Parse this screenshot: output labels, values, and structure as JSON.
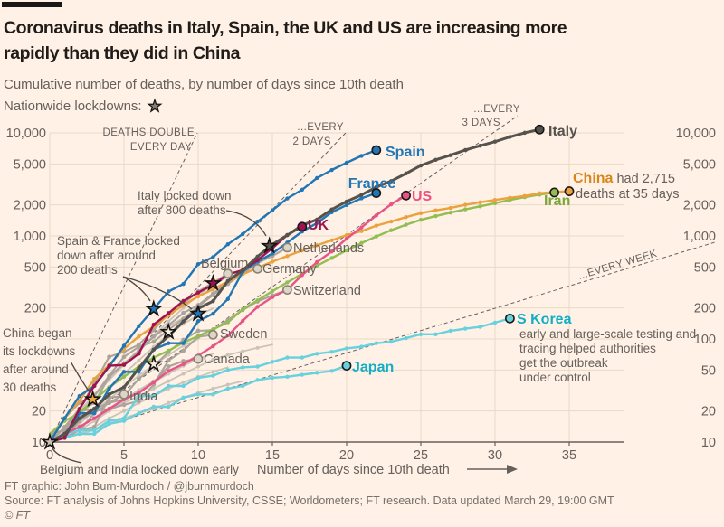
{
  "page": {
    "background": "#FFF1E5"
  },
  "header": {
    "brand_bar_color": "#1A1817",
    "title_line1": "Coronavirus deaths in Italy, Spain, the UK and US are increasing more",
    "title_line2": "rapidly than they did in China",
    "subtitle": "Cumulative number of deaths, by number of days since 10th death",
    "lockdown_legend_label": "Nationwide lockdowns:",
    "lockdown_icon": "star-icon"
  },
  "footer": {
    "credit": "FT graphic: John Burn-Murdoch / @jburnmurdoch",
    "source": "Source: FT analysis of Johns Hopkins University, CSSE; Worldometers; FT research. Data updated March 29, 19:00 GMT",
    "copyright": "© FT"
  },
  "chart_data": {
    "type": "line",
    "x_axis": {
      "label": "Number of days since 10th death",
      "ticks": [
        0,
        5,
        10,
        15,
        20,
        25,
        30,
        35
      ],
      "range": [
        0,
        38.7
      ]
    },
    "y_axis": {
      "scale": "log",
      "range": [
        10,
        10000
      ],
      "ticks_left": [
        "10,000",
        "5,000",
        "2,000",
        "1,000",
        "500",
        "200",
        "20",
        "10"
      ],
      "ticks_left_values": [
        10000,
        5000,
        2000,
        1000,
        500,
        200,
        20,
        10
      ],
      "ticks_right": [
        "10,000",
        "5,000",
        "2,000",
        "1,000",
        "500",
        "200",
        "100",
        "50",
        "20",
        "10"
      ],
      "ticks_right_values": [
        10000,
        5000,
        2000,
        1000,
        500,
        200,
        100,
        50,
        20,
        10
      ],
      "gridline_values": [
        20,
        50,
        100,
        200,
        500,
        1000,
        2000,
        5000,
        10000
      ]
    },
    "reference_lines": [
      {
        "id": "double-1day",
        "doubling_days": 1,
        "label_lines": [
          "DEATHS DOUBLE",
          "EVERY DAY"
        ]
      },
      {
        "id": "double-2days",
        "doubling_days": 2,
        "label_lines": [
          "...EVERY",
          "2 DAYS"
        ]
      },
      {
        "id": "double-3days",
        "doubling_days": 3,
        "label_lines": [
          "...EVERY",
          "3 DAYS"
        ]
      },
      {
        "id": "double-week",
        "doubling_days": 7,
        "label_lines": [
          "...EVERY WEEK"
        ]
      }
    ],
    "series": [
      {
        "id": "italy",
        "name": "Italy",
        "color": "#56524D",
        "label_color": "#56524D",
        "featured": true,
        "values": [
          10,
          12,
          17,
          21,
          29,
          34,
          52,
          79,
          107,
          148,
          197,
          233,
          366,
          463,
          631,
          827,
          1016,
          1266,
          1441,
          1809,
          2158,
          2503,
          2978,
          3405,
          4032,
          4825,
          5476,
          6077,
          6820,
          7503,
          8215,
          9134,
          10023,
          10779
        ]
      },
      {
        "id": "spain",
        "name": "Spain",
        "color": "#2176B5",
        "label_color": "#2176B5",
        "featured": true,
        "values": [
          10,
          17,
          28,
          35,
          54,
          86,
          133,
          195,
          289,
          342,
          533,
          623,
          830,
          1043,
          1375,
          1772,
          2311,
          2808,
          3647,
          4365,
          5138,
          5982,
          6803
        ]
      },
      {
        "id": "france",
        "name": "France",
        "color": "#2176B5",
        "label_color": "#2176B5",
        "featured": true,
        "values": [
          10,
          11,
          19,
          19,
          33,
          48,
          48,
          79,
          91,
          91,
          149,
          176,
          244,
          451,
          563,
          676,
          862,
          1102,
          1333,
          1698,
          1997,
          2317,
          2606
        ]
      },
      {
        "id": "uk",
        "name": "UK",
        "color": "#A0134F",
        "label_color": "#A0134F",
        "featured": true,
        "values": [
          10,
          11,
          21,
          35,
          55,
          56,
          72,
          138,
          178,
          234,
          282,
          336,
          423,
          466,
          582,
          760,
          1021,
          1228
        ]
      },
      {
        "id": "us",
        "name": "US",
        "color": "#E85486",
        "label_color": "#ED4E83",
        "featured": true,
        "values": [
          10,
          12,
          14,
          17,
          21,
          26,
          30,
          38,
          49,
          57,
          69,
          85,
          108,
          150,
          205,
          255,
          301,
          417,
          557,
          706,
          942,
          1209,
          1581,
          2026,
          2467
        ]
      },
      {
        "id": "china",
        "name": "China",
        "color": "#EBA13D",
        "label_color": "#D8861C",
        "featured": true,
        "note": "had 2,715 deaths at 35 days",
        "values": [
          10,
          17,
          25,
          41,
          56,
          80,
          106,
          132,
          170,
          213,
          259,
          304,
          361,
          425,
          490,
          563,
          637,
          722,
          811,
          908,
          1016,
          1113,
          1259,
          1380,
          1523,
          1665,
          1770,
          1868,
          2004,
          2118,
          2236,
          2345,
          2442,
          2592,
          2663,
          2715
        ]
      },
      {
        "id": "iran",
        "name": "Iran",
        "color": "#92BE51",
        "label_color": "#7CA53B",
        "featured": true,
        "values": [
          12,
          16,
          19,
          26,
          34,
          43,
          54,
          66,
          77,
          92,
          107,
          124,
          145,
          194,
          237,
          291,
          354,
          429,
          514,
          611,
          724,
          853,
          988,
          1135,
          1284,
          1433,
          1556,
          1685,
          1812,
          1934,
          2077,
          2234,
          2378,
          2517,
          2640
        ]
      },
      {
        "id": "skorea",
        "name": "S Korea",
        "color": "#67D1DE",
        "label_color": "#11AEC6",
        "featured": true,
        "note": "early and large-scale testing and tracing helped authorities get the outbreak under control",
        "values": [
          10,
          12,
          13,
          13,
          16,
          17,
          28,
          28,
          35,
          35,
          42,
          44,
          50,
          53,
          54,
          60,
          66,
          66,
          72,
          75,
          81,
          84,
          91,
          94,
          102,
          111,
          111,
          120,
          126,
          131,
          144,
          158
        ]
      },
      {
        "id": "japan",
        "name": "Japan",
        "color": "#67D1DE",
        "label_color": "#11AEC6",
        "featured": true,
        "values": [
          10,
          11,
          12,
          12,
          15,
          16,
          19,
          22,
          22,
          27,
          29,
          29,
          33,
          35,
          40,
          42,
          43,
          45,
          47,
          49,
          55
        ]
      },
      {
        "id": "netherlands",
        "name": "Netherlands",
        "color": "#ACA49B",
        "label_color": "#66605C",
        "featured": false,
        "values": [
          10,
          12,
          20,
          24,
          43,
          58,
          76,
          106,
          136,
          179,
          213,
          276,
          356,
          434,
          546,
          639,
          771
        ]
      },
      {
        "id": "belgium",
        "name": "Belgium",
        "color": "#ACA49B",
        "label_color": "#66605C",
        "featured": false,
        "values": [
          10,
          14,
          21,
          37,
          67,
          75,
          88,
          122,
          178,
          220,
          289,
          353,
          431
        ]
      },
      {
        "id": "germany",
        "name": "Germany",
        "color": "#ACA49B",
        "label_color": "#66605C",
        "featured": false,
        "values": [
          11,
          17,
          24,
          28,
          44,
          67,
          84,
          94,
          123,
          157,
          206,
          267,
          342,
          433,
          480
        ]
      },
      {
        "id": "switzerland",
        "name": "Switzerland",
        "color": "#ACA49B",
        "label_color": "#66605C",
        "featured": false,
        "values": [
          10,
          11,
          13,
          14,
          27,
          28,
          41,
          54,
          75,
          98,
          120,
          122,
          153,
          191,
          231,
          264,
          300
        ]
      },
      {
        "id": "sweden",
        "name": "Sweden",
        "color": "#ACA49B",
        "label_color": "#66605C",
        "featured": false,
        "values": [
          10,
          11,
          16,
          20,
          21,
          23,
          25,
          36,
          62,
          77,
          105,
          110
        ]
      },
      {
        "id": "canada",
        "name": "Canada",
        "color": "#ACA49B",
        "label_color": "#66605C",
        "featured": false,
        "values": [
          12,
          13,
          20,
          21,
          24,
          26,
          30,
          38,
          54,
          61,
          64
        ]
      },
      {
        "id": "india",
        "name": "India",
        "color": "#ACA49B",
        "label_color": "#66605C",
        "featured": false,
        "values": [
          10,
          11,
          13,
          19,
          24,
          29
        ]
      }
    ],
    "unlabeled_series": [
      [
        10,
        13,
        18,
        25,
        34,
        46,
        62,
        84,
        110,
        140,
        170,
        198
      ],
      [
        10,
        14,
        20,
        29,
        41,
        57,
        78,
        104,
        132,
        160
      ],
      [
        10,
        12,
        15,
        20,
        26,
        34,
        44,
        56,
        70,
        86,
        100
      ],
      [
        10,
        11,
        13,
        16,
        20,
        25,
        31,
        38,
        46,
        55,
        64,
        72
      ],
      [
        10,
        12,
        14,
        17,
        21,
        26,
        32,
        39,
        47,
        56
      ],
      [
        10,
        11,
        12,
        14,
        17,
        20,
        24,
        28,
        33,
        38,
        43,
        48,
        53
      ],
      [
        10,
        14,
        20,
        28,
        40,
        56,
        78,
        108,
        148,
        200,
        265,
        340,
        400
      ],
      [
        10,
        11,
        12,
        13,
        15,
        17,
        19,
        21,
        24,
        27,
        30,
        33,
        36,
        39
      ],
      [
        10,
        12,
        14,
        17,
        20,
        24,
        28,
        33,
        39,
        46,
        54,
        63,
        70,
        76,
        82,
        88
      ]
    ],
    "lockdowns": [
      {
        "id": "belgium-india",
        "country": "Belgium & India",
        "day": 0,
        "approx_deaths": 10
      },
      {
        "id": "china",
        "country": "China",
        "day": 2.9,
        "approx_deaths": 26
      },
      {
        "id": "other-1",
        "country": "other",
        "day": 7,
        "approx_deaths": 57
      },
      {
        "id": "other-2",
        "country": "other",
        "day": 8,
        "approx_deaths": 117
      },
      {
        "id": "spain",
        "country": "Spain",
        "day": 7,
        "approx_deaths": 196
      },
      {
        "id": "france",
        "country": "France",
        "day": 10,
        "approx_deaths": 176
      },
      {
        "id": "uk",
        "country": "UK",
        "day": 11,
        "approx_deaths": 347
      },
      {
        "id": "italy",
        "country": "Italy",
        "day": 14.8,
        "approx_deaths": 800
      }
    ],
    "annotations": [
      {
        "id": "italy-lockdown",
        "lines": [
          "Italy locked down",
          "after 800 deaths"
        ]
      },
      {
        "id": "spain-france-lockdown",
        "lines": [
          "Spain & France locked",
          "down after around",
          "200 deaths"
        ]
      },
      {
        "id": "china-lockdown",
        "lines": [
          "China began",
          "its lockdowns",
          "after around",
          "30 deaths"
        ]
      },
      {
        "id": "belgium-india-lockdown",
        "lines": [
          "Belgium and India locked down early"
        ]
      },
      {
        "id": "skorea-note",
        "lines": [
          "early and large-scale testing and",
          "tracing helped authorities",
          "get the outbreak",
          "under control"
        ]
      },
      {
        "id": "china-note-line1-bold",
        "lines": [
          "China"
        ]
      },
      {
        "id": "china-note-line1-rest",
        "lines": [
          " had 2,715"
        ]
      },
      {
        "id": "china-note-line2",
        "lines": [
          "deaths at 35 days"
        ]
      }
    ],
    "colors": {
      "background": "#FFF1E5",
      "gridline": "#E9D9C8",
      "axis": "#66605C",
      "annotation_text": "#66605C",
      "reference_line": "#66605C",
      "unlabeled_line": "#CBC3B7",
      "gray_endpoint_fill": "#DCD5C8"
    }
  }
}
